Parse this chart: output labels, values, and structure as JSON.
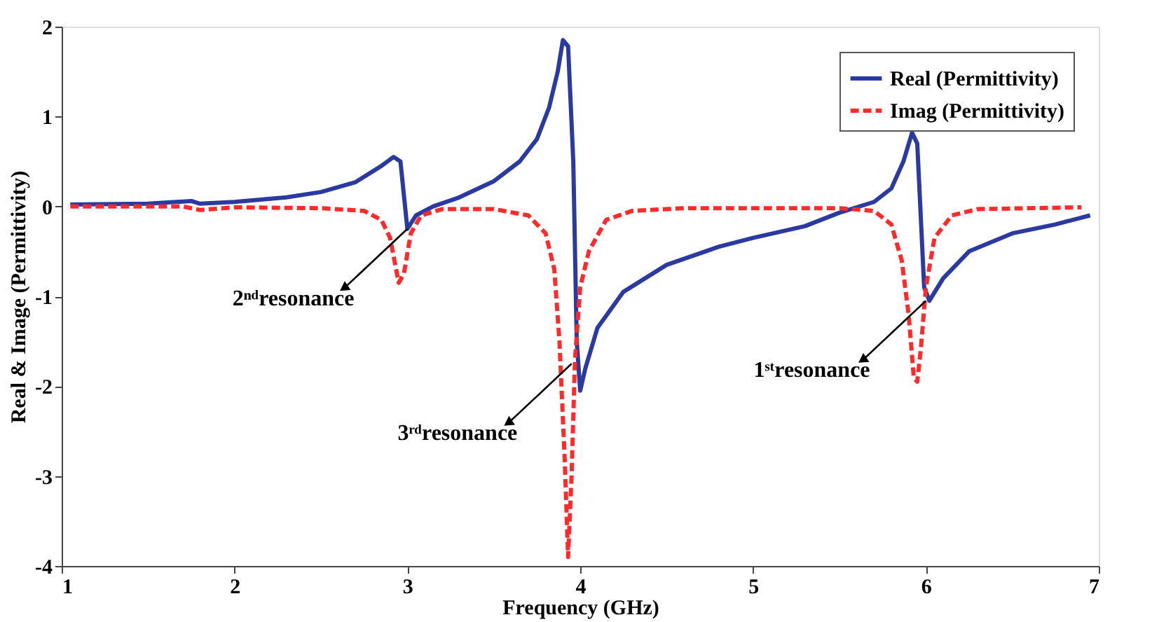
{
  "chart_data": {
    "type": "line",
    "xlabel": "Frequency (GHz)",
    "ylabel": "Real & Image (Permittivity)",
    "xlim": [
      1,
      7
    ],
    "ylim": [
      -4,
      2
    ],
    "xticks": [
      1,
      2,
      3,
      4,
      5,
      6,
      7
    ],
    "yticks": [
      -4,
      -3,
      -2,
      -1,
      0,
      1,
      2
    ],
    "grid": false,
    "legend": "top right",
    "series": [
      {
        "name": "Real (Permittivity)",
        "color": "#2b3aa0",
        "line_style": "solid",
        "x": [
          1.05,
          1.5,
          1.75,
          1.8,
          2.0,
          2.3,
          2.5,
          2.7,
          2.85,
          2.92,
          2.96,
          3.0,
          3.05,
          3.15,
          3.3,
          3.5,
          3.65,
          3.75,
          3.82,
          3.87,
          3.9,
          3.93,
          3.96,
          3.98,
          4.0,
          4.03,
          4.1,
          4.25,
          4.5,
          4.8,
          5.0,
          5.3,
          5.5,
          5.7,
          5.8,
          5.87,
          5.92,
          5.95,
          5.99,
          6.02,
          6.1,
          6.25,
          6.5,
          6.75,
          6.95
        ],
        "values": [
          0.02,
          0.03,
          0.06,
          0.03,
          0.05,
          0.1,
          0.16,
          0.27,
          0.45,
          0.55,
          0.5,
          -0.25,
          -0.1,
          0.0,
          0.1,
          0.28,
          0.5,
          0.75,
          1.1,
          1.5,
          1.85,
          1.78,
          0.5,
          -1.5,
          -2.05,
          -1.8,
          -1.35,
          -0.95,
          -0.65,
          -0.45,
          -0.35,
          -0.22,
          -0.07,
          0.05,
          0.2,
          0.5,
          0.82,
          0.7,
          -0.9,
          -1.05,
          -0.8,
          -0.5,
          -0.3,
          -0.2,
          -0.1
        ]
      },
      {
        "name": "Imag (Permittivity)",
        "color": "#ff2a2a",
        "line_style": "dashed",
        "x": [
          1.05,
          1.7,
          1.8,
          2.0,
          2.5,
          2.75,
          2.85,
          2.9,
          2.95,
          2.98,
          3.02,
          3.08,
          3.2,
          3.5,
          3.7,
          3.8,
          3.85,
          3.88,
          3.91,
          3.93,
          3.95,
          3.97,
          4.0,
          4.05,
          4.15,
          4.3,
          4.6,
          5.5,
          5.7,
          5.8,
          5.86,
          5.9,
          5.93,
          5.95,
          5.97,
          6.0,
          6.05,
          6.15,
          6.3,
          6.9
        ],
        "values": [
          0,
          0,
          -0.04,
          -0.01,
          -0.02,
          -0.05,
          -0.15,
          -0.35,
          -0.85,
          -0.75,
          -0.3,
          -0.1,
          -0.03,
          -0.03,
          -0.1,
          -0.3,
          -0.7,
          -1.5,
          -2.8,
          -3.9,
          -3.0,
          -1.7,
          -0.9,
          -0.5,
          -0.15,
          -0.05,
          -0.02,
          -0.02,
          -0.05,
          -0.2,
          -0.6,
          -1.2,
          -1.9,
          -1.95,
          -1.6,
          -0.9,
          -0.35,
          -0.1,
          -0.03,
          -0.01
        ]
      }
    ],
    "annotations": [
      {
        "text": "2ⁿᵈresonance",
        "x": 3.0,
        "y": -0.25
      },
      {
        "text": "3ʳᵈresonance",
        "x": 3.95,
        "y": -1.75
      },
      {
        "text": "1ˢᵗresonance",
        "x": 6.0,
        "y": -1.05
      }
    ]
  }
}
